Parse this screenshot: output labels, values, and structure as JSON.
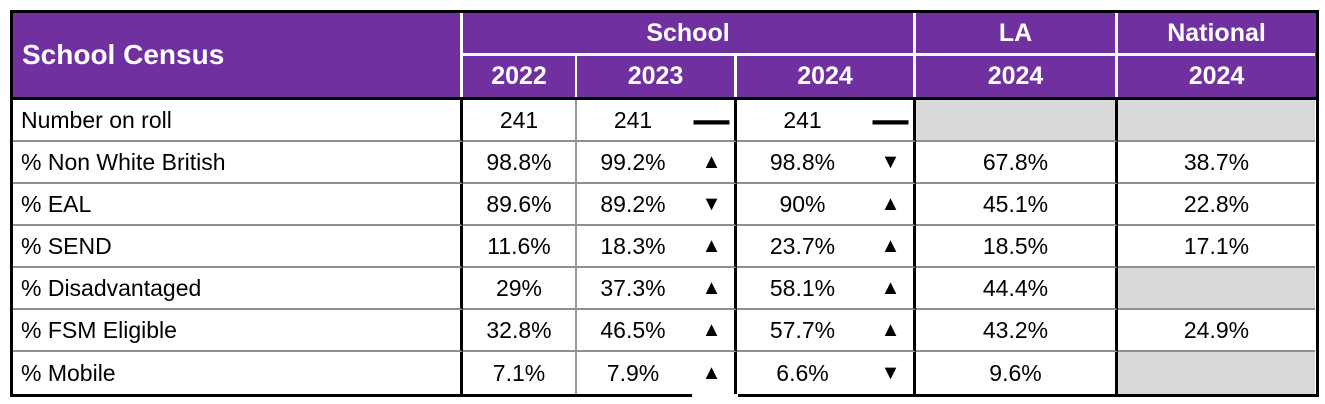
{
  "header": {
    "title": "School Census",
    "groups": {
      "school": "School",
      "la": "LA",
      "national": "National"
    },
    "years": {
      "school_2022": "2022",
      "school_2023": "2023",
      "school_2024": "2024",
      "la_2024": "2024",
      "national_2024": "2024"
    }
  },
  "icons": {
    "trend_up": "▲",
    "trend_down": "▼",
    "trend_same": "▬"
  },
  "rows": [
    {
      "label": "Number on roll",
      "school_2022": "241",
      "school_2023": "241",
      "trend_2023": "same",
      "school_2024": "241",
      "trend_2024": "same",
      "la_2024": "",
      "national_2024": ""
    },
    {
      "label": "% Non White British",
      "school_2022": "98.8%",
      "school_2023": "99.2%",
      "trend_2023": "up",
      "school_2024": "98.8%",
      "trend_2024": "down",
      "la_2024": "67.8%",
      "national_2024": "38.7%"
    },
    {
      "label": "% EAL",
      "school_2022": "89.6%",
      "school_2023": "89.2%",
      "trend_2023": "down",
      "school_2024": "90%",
      "trend_2024": "up",
      "la_2024": "45.1%",
      "national_2024": "22.8%"
    },
    {
      "label": "% SEND",
      "school_2022": "11.6%",
      "school_2023": "18.3%",
      "trend_2023": "up",
      "school_2024": "23.7%",
      "trend_2024": "up",
      "la_2024": "18.5%",
      "national_2024": "17.1%"
    },
    {
      "label": "% Disadvantaged",
      "school_2022": "29%",
      "school_2023": "37.3%",
      "trend_2023": "up",
      "school_2024": "58.1%",
      "trend_2024": "up",
      "la_2024": "44.4%",
      "national_2024": ""
    },
    {
      "label": "% FSM Eligible",
      "school_2022": "32.8%",
      "school_2023": "46.5%",
      "trend_2023": "up",
      "school_2024": "57.7%",
      "trend_2024": "up",
      "la_2024": "43.2%",
      "national_2024": "24.9%"
    },
    {
      "label": "% Mobile",
      "school_2022": "7.1%",
      "school_2023": "7.9%",
      "trend_2023": "up",
      "school_2024": "6.6%",
      "trend_2024": "down",
      "la_2024": "9.6%",
      "national_2024": ""
    }
  ],
  "colors": {
    "header_purple": "#7030A0",
    "header_text": "#FFFFFF",
    "empty_cell_grey": "#D9D9D9",
    "grid_black": "#000000",
    "row_divider_grey": "#8F8F8F"
  }
}
